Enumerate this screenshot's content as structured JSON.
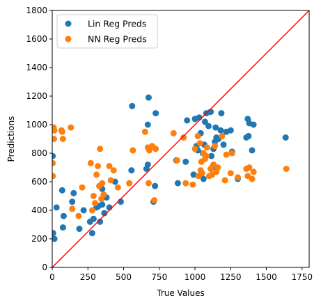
{
  "chart_data": {
    "type": "scatter",
    "title": "",
    "xlabel": "True Values",
    "ylabel": "Predictions",
    "xlim": [
      0,
      1800
    ],
    "ylim": [
      0,
      1800
    ],
    "xticks": [
      0,
      250,
      500,
      750,
      1000,
      1250,
      1500,
      1750
    ],
    "yticks": [
      0,
      200,
      400,
      600,
      800,
      1000,
      1200,
      1400,
      1600,
      1800
    ],
    "grid": false,
    "legend_position": "top-left",
    "reference_line": {
      "from": [
        0,
        0
      ],
      "to": [
        1800,
        1800
      ],
      "color": "#ff0000"
    },
    "series": [
      {
        "name": "Lin Reg Preds",
        "color": "#1f77b4",
        "points": [
          [
            3,
            780
          ],
          [
            6,
            240
          ],
          [
            15,
            200
          ],
          [
            30,
            420
          ],
          [
            70,
            540
          ],
          [
            75,
            280
          ],
          [
            80,
            360
          ],
          [
            140,
            460
          ],
          [
            150,
            520
          ],
          [
            190,
            270
          ],
          [
            220,
            400
          ],
          [
            265,
            320
          ],
          [
            280,
            240
          ],
          [
            290,
            340
          ],
          [
            310,
            420
          ],
          [
            325,
            430
          ],
          [
            335,
            320
          ],
          [
            350,
            440
          ],
          [
            350,
            550
          ],
          [
            365,
            380
          ],
          [
            380,
            490
          ],
          [
            400,
            420
          ],
          [
            440,
            600
          ],
          [
            480,
            460
          ],
          [
            555,
            680
          ],
          [
            560,
            1130
          ],
          [
            660,
            690
          ],
          [
            670,
            720
          ],
          [
            670,
            1000
          ],
          [
            675,
            1190
          ],
          [
            710,
            460
          ],
          [
            720,
            570
          ],
          [
            725,
            1080
          ],
          [
            870,
            750
          ],
          [
            880,
            590
          ],
          [
            935,
            740
          ],
          [
            945,
            1030
          ],
          [
            990,
            650
          ],
          [
            1000,
            1040
          ],
          [
            1010,
            850
          ],
          [
            1020,
            820
          ],
          [
            1030,
            1050
          ],
          [
            1040,
            940
          ],
          [
            1055,
            800
          ],
          [
            1060,
            620
          ],
          [
            1065,
            860
          ],
          [
            1070,
            1020
          ],
          [
            1080,
            1080
          ],
          [
            1095,
            990
          ],
          [
            1110,
            1090
          ],
          [
            1115,
            780
          ],
          [
            1120,
            700
          ],
          [
            1130,
            830
          ],
          [
            1140,
            880
          ],
          [
            1145,
            980
          ],
          [
            1150,
            910
          ],
          [
            1165,
            900
          ],
          [
            1180,
            960
          ],
          [
            1185,
            1080
          ],
          [
            1200,
            860
          ],
          [
            1220,
            950
          ],
          [
            1250,
            960
          ],
          [
            1260,
            810
          ],
          [
            1300,
            620
          ],
          [
            1360,
            910
          ],
          [
            1370,
            1040
          ],
          [
            1375,
            920
          ],
          [
            1380,
            1010
          ],
          [
            1400,
            820
          ],
          [
            1410,
            1000
          ],
          [
            1635,
            910
          ]
        ]
      },
      {
        "name": "NN Reg Preds",
        "color": "#ff7f0e",
        "points": [
          [
            3,
            730
          ],
          [
            4,
            640
          ],
          [
            10,
            980
          ],
          [
            12,
            900
          ],
          [
            15,
            960
          ],
          [
            65,
            960
          ],
          [
            70,
            950
          ],
          [
            75,
            900
          ],
          [
            130,
            980
          ],
          [
            140,
            410
          ],
          [
            185,
            360
          ],
          [
            210,
            560
          ],
          [
            270,
            730
          ],
          [
            280,
            400
          ],
          [
            290,
            500
          ],
          [
            300,
            450
          ],
          [
            310,
            650
          ],
          [
            320,
            710
          ],
          [
            330,
            570
          ],
          [
            335,
            830
          ],
          [
            345,
            480
          ],
          [
            350,
            590
          ],
          [
            360,
            510
          ],
          [
            400,
            710
          ],
          [
            410,
            610
          ],
          [
            430,
            680
          ],
          [
            460,
            560
          ],
          [
            540,
            590
          ],
          [
            565,
            820
          ],
          [
            650,
            950
          ],
          [
            670,
            840
          ],
          [
            675,
            590
          ],
          [
            680,
            820
          ],
          [
            700,
            850
          ],
          [
            715,
            470
          ],
          [
            725,
            830
          ],
          [
            850,
            940
          ],
          [
            875,
            750
          ],
          [
            920,
            910
          ],
          [
            935,
            590
          ],
          [
            985,
            580
          ],
          [
            1000,
            830
          ],
          [
            1020,
            920
          ],
          [
            1025,
            640
          ],
          [
            1035,
            870
          ],
          [
            1040,
            680
          ],
          [
            1045,
            740
          ],
          [
            1050,
            660
          ],
          [
            1060,
            800
          ],
          [
            1070,
            760
          ],
          [
            1080,
            780
          ],
          [
            1085,
            840
          ],
          [
            1100,
            640
          ],
          [
            1110,
            690
          ],
          [
            1120,
            650
          ],
          [
            1130,
            720
          ],
          [
            1140,
            850
          ],
          [
            1150,
            670
          ],
          [
            1160,
            700
          ],
          [
            1190,
            920
          ],
          [
            1210,
            610
          ],
          [
            1220,
            790
          ],
          [
            1250,
            660
          ],
          [
            1260,
            800
          ],
          [
            1300,
            630
          ],
          [
            1360,
            690
          ],
          [
            1370,
            640
          ],
          [
            1380,
            700
          ],
          [
            1400,
            620
          ],
          [
            1410,
            670
          ],
          [
            1640,
            690
          ]
        ]
      }
    ]
  }
}
